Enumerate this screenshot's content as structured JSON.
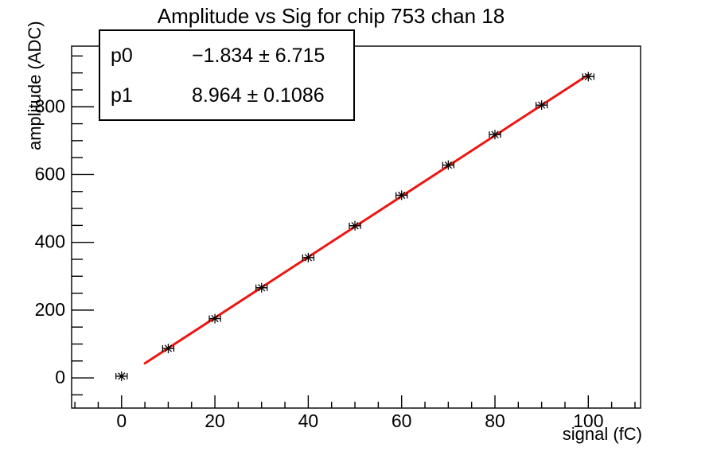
{
  "window": {
    "background": "#ffffff",
    "frame_color": "#000000"
  },
  "chart_data": {
    "type": "scatter",
    "title": "Amplitude vs Sig for chip 753 chan 18",
    "xlabel": "signal (fC)",
    "ylabel": "amplitude (ADC)",
    "x": [
      0,
      10,
      20,
      30,
      40,
      50,
      60,
      70,
      80,
      90,
      100
    ],
    "y": [
      5,
      87,
      175,
      266,
      355,
      449,
      539,
      628,
      718,
      805,
      889
    ],
    "x_error": 1.2,
    "xlim": [
      -10.7,
      111.2
    ],
    "ylim": [
      -89,
      979
    ],
    "x_major_ticks": [
      0,
      20,
      40,
      60,
      80,
      100
    ],
    "y_major_ticks": [
      0,
      200,
      400,
      600,
      800
    ],
    "x_minor_step": 5,
    "y_minor_step": 50,
    "grid": false,
    "legend_position": "none",
    "marker": "asterisk-star",
    "marker_color": "#000000",
    "fit": {
      "type": "linear",
      "p0": -1.834,
      "p1": 8.964,
      "x_range": [
        5,
        100
      ],
      "color": "#ee1511",
      "width": 3
    }
  },
  "stats_box": {
    "rows": [
      {
        "label": "p0",
        "value": "−1.834 ± 6.715"
      },
      {
        "label": "p1",
        "value": "8.964 ± 0.1086"
      }
    ]
  }
}
